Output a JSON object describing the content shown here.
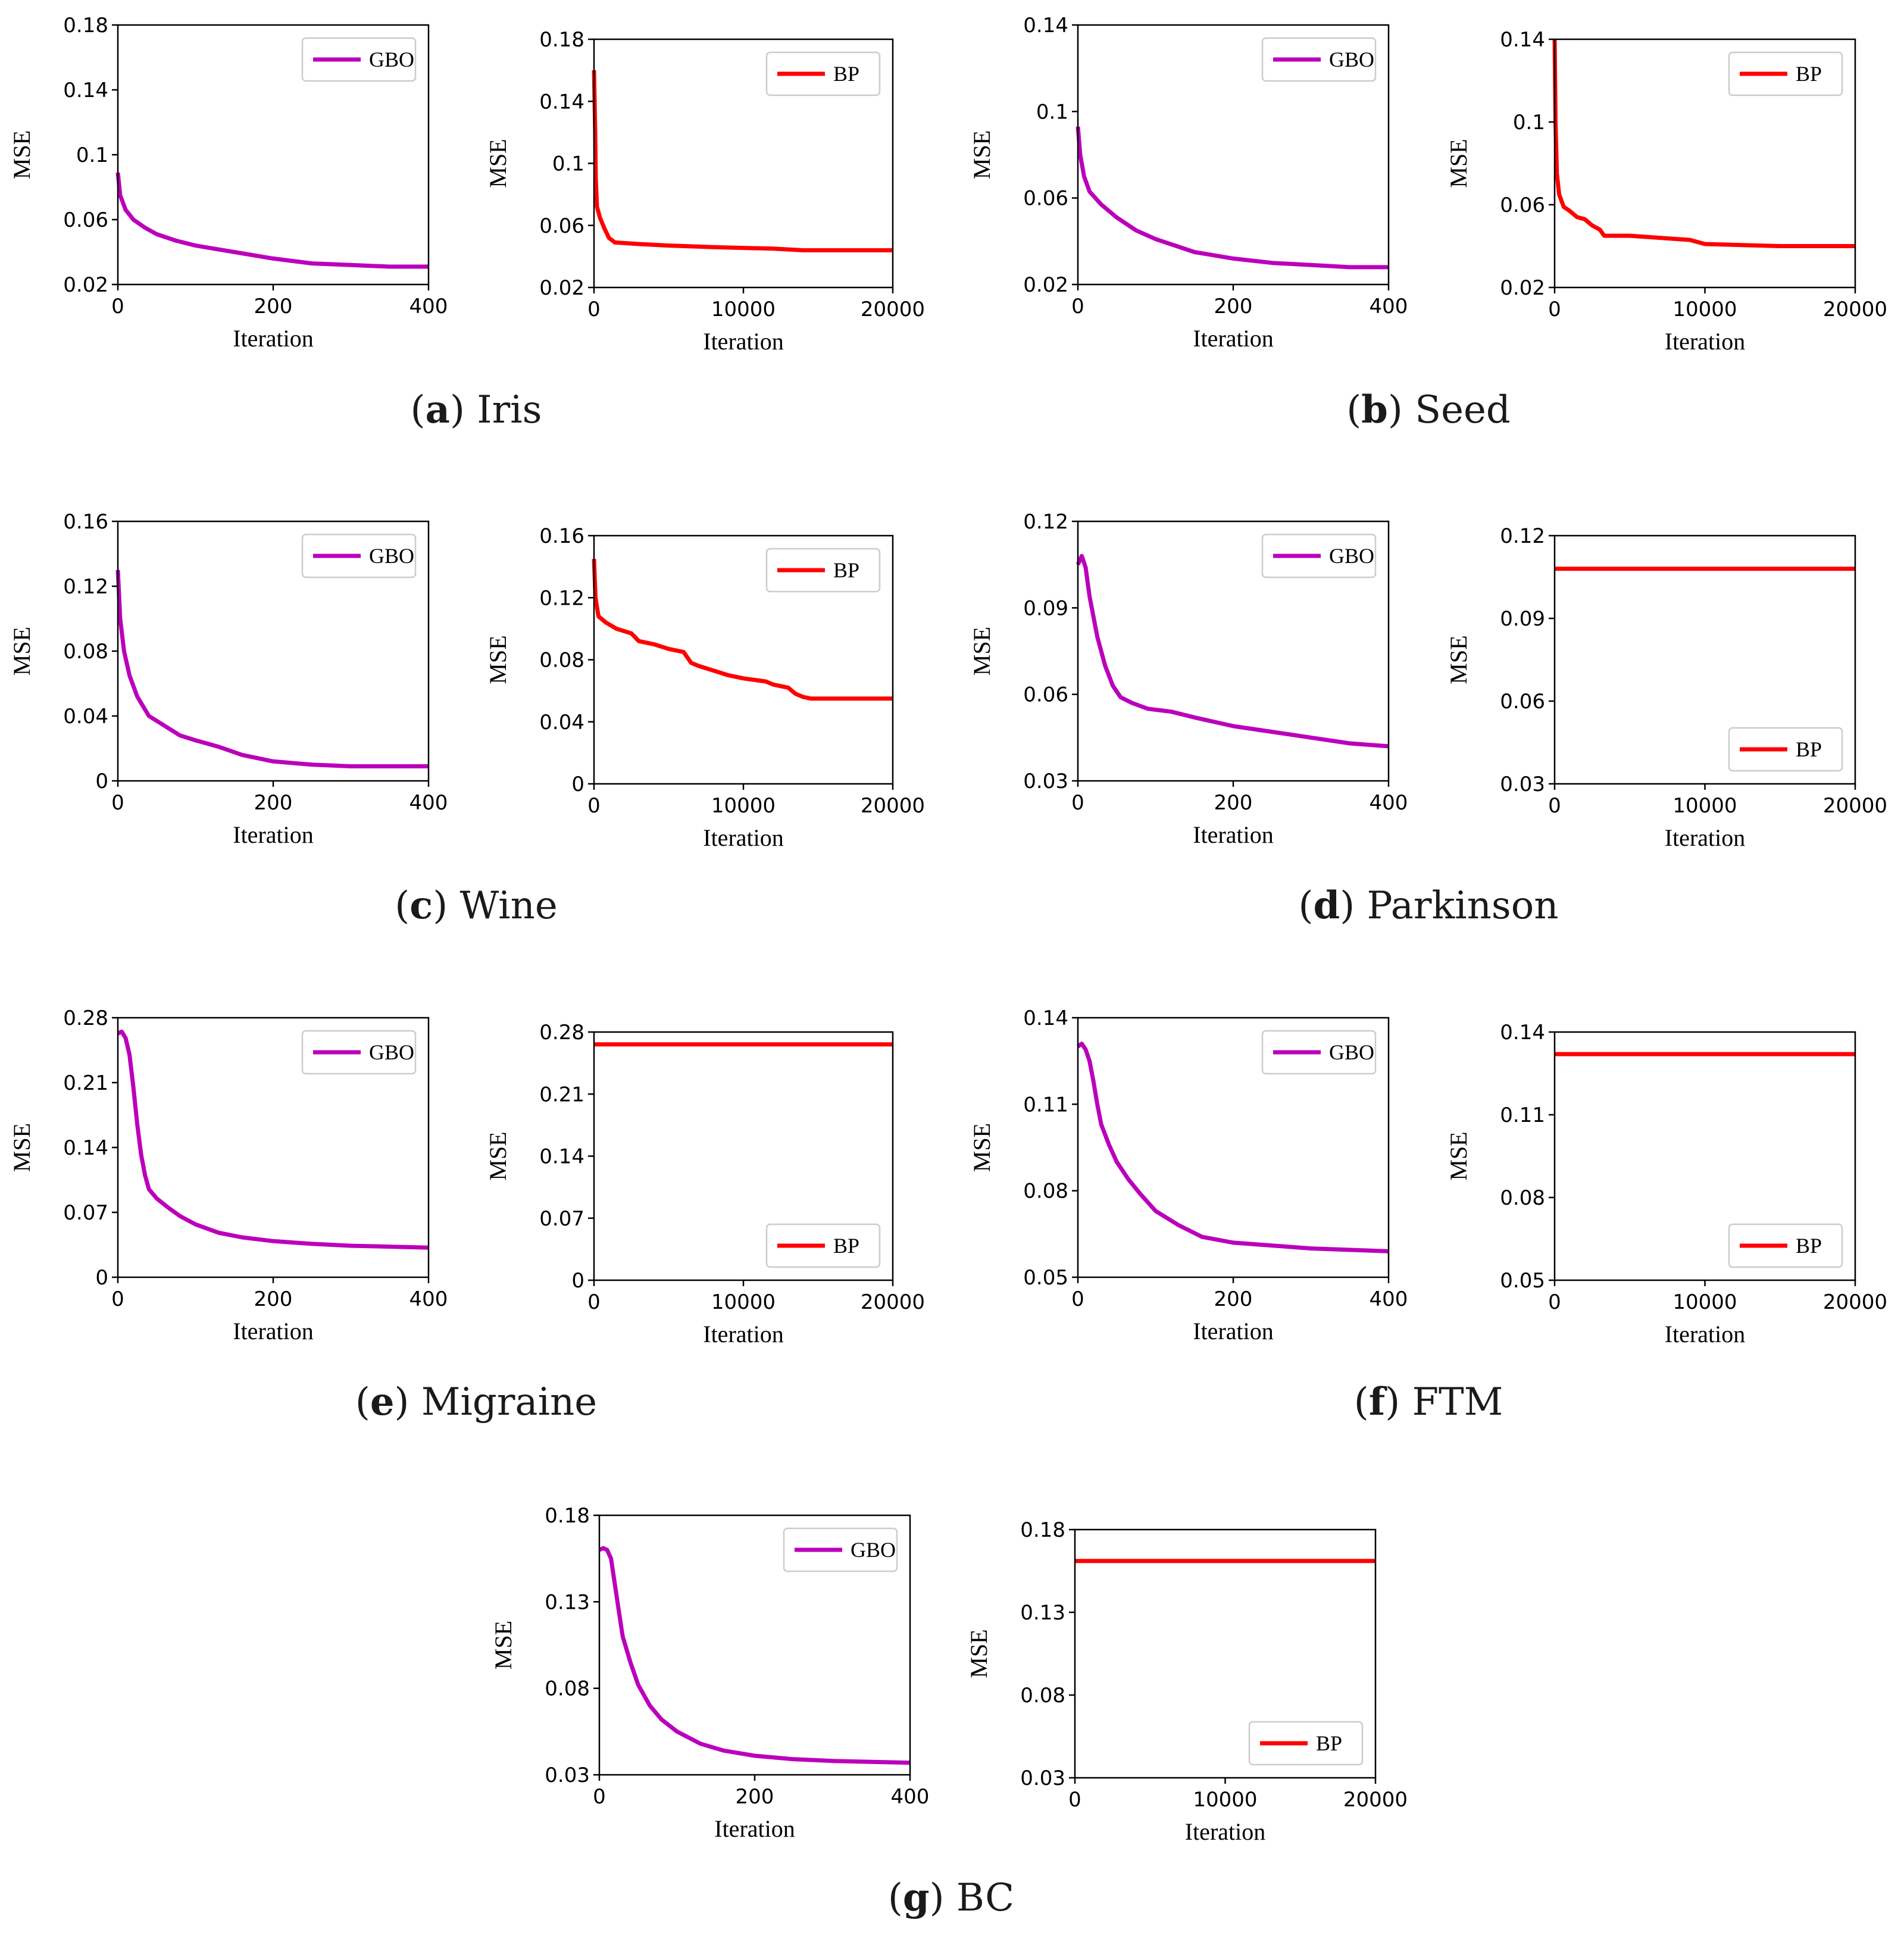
{
  "colors": {
    "gbo": "#bb00bb",
    "bp": "#ff0000",
    "axis": "#000000",
    "legend_border": "#cccccc"
  },
  "chart_data": [
    {
      "id": "a",
      "caption_letter": "a",
      "caption_text": "Iris",
      "panels": [
        {
          "type": "line",
          "series_name": "GBO",
          "color_key": "gbo",
          "xlabel": "Iteration",
          "ylabel": "MSE",
          "xlim": [
            0,
            400
          ],
          "ylim": [
            0.02,
            0.18
          ],
          "xticks": [
            0,
            200,
            400
          ],
          "xtick_labels": [
            "0",
            "200",
            "400"
          ],
          "yticks": [
            0.02,
            0.06,
            0.1,
            0.14,
            0.18
          ],
          "ytick_labels": [
            "0.02",
            "0.06",
            "0.1",
            "0.14",
            "0.18"
          ],
          "legend_loc": "upper-right",
          "x": [
            0,
            3,
            10,
            20,
            35,
            50,
            75,
            100,
            150,
            200,
            250,
            300,
            350,
            400
          ],
          "y": [
            0.089,
            0.075,
            0.066,
            0.06,
            0.055,
            0.051,
            0.047,
            0.044,
            0.04,
            0.036,
            0.033,
            0.032,
            0.031,
            0.031
          ]
        },
        {
          "type": "line",
          "series_name": "BP",
          "color_key": "bp",
          "xlabel": "Iteration",
          "ylabel": "MSE",
          "xlim": [
            0,
            20000
          ],
          "ylim": [
            0.02,
            0.18
          ],
          "xticks": [
            0,
            10000,
            20000
          ],
          "xtick_labels": [
            "0",
            "10000",
            "20000"
          ],
          "yticks": [
            0.02,
            0.06,
            0.1,
            0.14,
            0.18
          ],
          "ytick_labels": [
            "0.02",
            "0.06",
            "0.1",
            "0.14",
            "0.18"
          ],
          "legend_loc": "upper-right",
          "x": [
            0,
            80,
            120,
            200,
            400,
            700,
            1000,
            1400,
            3000,
            5000,
            8000,
            12000,
            14000,
            17000,
            20000
          ],
          "y": [
            0.16,
            0.12,
            0.09,
            0.072,
            0.065,
            0.058,
            0.052,
            0.049,
            0.048,
            0.047,
            0.046,
            0.045,
            0.044,
            0.044,
            0.044
          ]
        }
      ]
    },
    {
      "id": "b",
      "caption_letter": "b",
      "caption_text": "Seed",
      "panels": [
        {
          "type": "line",
          "series_name": "GBO",
          "color_key": "gbo",
          "xlabel": "Iteration",
          "ylabel": "MSE",
          "xlim": [
            0,
            400
          ],
          "ylim": [
            0.02,
            0.14
          ],
          "xticks": [
            0,
            200,
            400
          ],
          "xtick_labels": [
            "0",
            "200",
            "400"
          ],
          "yticks": [
            0.02,
            0.06,
            0.1,
            0.14
          ],
          "ytick_labels": [
            "0.02",
            "0.06",
            "0.1",
            "0.14"
          ],
          "legend_loc": "upper-right",
          "x": [
            0,
            3,
            8,
            15,
            30,
            50,
            75,
            100,
            150,
            200,
            250,
            300,
            350,
            400
          ],
          "y": [
            0.093,
            0.08,
            0.07,
            0.063,
            0.057,
            0.051,
            0.045,
            0.041,
            0.035,
            0.032,
            0.03,
            0.029,
            0.028,
            0.028
          ]
        },
        {
          "type": "line",
          "series_name": "BP",
          "color_key": "bp",
          "xlabel": "Iteration",
          "ylabel": "MSE",
          "xlim": [
            0,
            20000
          ],
          "ylim": [
            0.02,
            0.14
          ],
          "xticks": [
            0,
            10000,
            20000
          ],
          "xtick_labels": [
            "0",
            "10000",
            "20000"
          ],
          "yticks": [
            0.02,
            0.06,
            0.1,
            0.14
          ],
          "ytick_labels": [
            "0.02",
            "0.06",
            "0.1",
            "0.14"
          ],
          "legend_loc": "upper-right",
          "x": [
            0,
            60,
            150,
            300,
            600,
            1000,
            1500,
            2000,
            2500,
            3000,
            3300,
            5000,
            7000,
            9000,
            10000,
            15000,
            20000
          ],
          "y": [
            0.14,
            0.1,
            0.075,
            0.065,
            0.059,
            0.057,
            0.054,
            0.053,
            0.05,
            0.048,
            0.045,
            0.045,
            0.044,
            0.043,
            0.041,
            0.04,
            0.04
          ]
        }
      ]
    },
    {
      "id": "c",
      "caption_letter": "c",
      "caption_text": "Wine",
      "panels": [
        {
          "type": "line",
          "series_name": "GBO",
          "color_key": "gbo",
          "xlabel": "Iteration",
          "ylabel": "MSE",
          "xlim": [
            0,
            400
          ],
          "ylim": [
            0,
            0.16
          ],
          "xticks": [
            0,
            200,
            400
          ],
          "xtick_labels": [
            "0",
            "200",
            "400"
          ],
          "yticks": [
            0,
            0.04,
            0.08,
            0.12,
            0.16
          ],
          "ytick_labels": [
            "0",
            "0.04",
            "0.08",
            "0.12",
            "0.16"
          ],
          "legend_loc": "upper-right",
          "x": [
            0,
            3,
            8,
            15,
            25,
            40,
            60,
            80,
            100,
            130,
            160,
            200,
            250,
            300,
            350,
            400
          ],
          "y": [
            0.13,
            0.1,
            0.08,
            0.065,
            0.052,
            0.04,
            0.034,
            0.028,
            0.025,
            0.021,
            0.016,
            0.012,
            0.01,
            0.009,
            0.009,
            0.009
          ]
        },
        {
          "type": "line",
          "series_name": "BP",
          "color_key": "bp",
          "xlabel": "Iteration",
          "ylabel": "MSE",
          "xlim": [
            0,
            20000
          ],
          "ylim": [
            0,
            0.16
          ],
          "xticks": [
            0,
            10000,
            20000
          ],
          "xtick_labels": [
            "0",
            "10000",
            "20000"
          ],
          "yticks": [
            0,
            0.04,
            0.08,
            0.12,
            0.16
          ],
          "ytick_labels": [
            "0",
            "0.04",
            "0.08",
            "0.12",
            "0.16"
          ],
          "legend_loc": "upper-right",
          "x": [
            0,
            100,
            300,
            800,
            1500,
            2500,
            3000,
            4000,
            5000,
            6000,
            6500,
            7000,
            8000,
            9000,
            10000,
            11500,
            12000,
            13000,
            13500,
            14000,
            14500,
            20000
          ],
          "y": [
            0.145,
            0.12,
            0.108,
            0.104,
            0.1,
            0.097,
            0.092,
            0.09,
            0.087,
            0.085,
            0.078,
            0.076,
            0.073,
            0.07,
            0.068,
            0.066,
            0.064,
            0.062,
            0.058,
            0.056,
            0.055,
            0.055
          ]
        }
      ]
    },
    {
      "id": "d",
      "caption_letter": "d",
      "caption_text": "Parkinson",
      "panels": [
        {
          "type": "line",
          "series_name": "GBO",
          "color_key": "gbo",
          "xlabel": "Iteration",
          "ylabel": "MSE",
          "xlim": [
            0,
            400
          ],
          "ylim": [
            0.03,
            0.12
          ],
          "xticks": [
            0,
            200,
            400
          ],
          "xtick_labels": [
            "0",
            "200",
            "400"
          ],
          "yticks": [
            0.03,
            0.06,
            0.09,
            0.12
          ],
          "ytick_labels": [
            "0.03",
            "0.06",
            "0.09",
            "0.12"
          ],
          "legend_loc": "upper-right",
          "x": [
            0,
            5,
            10,
            15,
            25,
            35,
            45,
            55,
            70,
            90,
            120,
            150,
            200,
            250,
            300,
            350,
            400
          ],
          "y": [
            0.105,
            0.108,
            0.104,
            0.094,
            0.08,
            0.07,
            0.063,
            0.059,
            0.057,
            0.055,
            0.054,
            0.052,
            0.049,
            0.047,
            0.045,
            0.043,
            0.042
          ]
        },
        {
          "type": "line",
          "series_name": "BP",
          "color_key": "bp",
          "xlabel": "Iteration",
          "ylabel": "MSE",
          "xlim": [
            0,
            20000
          ],
          "ylim": [
            0.03,
            0.12
          ],
          "xticks": [
            0,
            10000,
            20000
          ],
          "xtick_labels": [
            "0",
            "10000",
            "20000"
          ],
          "yticks": [
            0.03,
            0.06,
            0.09,
            0.12
          ],
          "ytick_labels": [
            "0.03",
            "0.06",
            "0.09",
            "0.12"
          ],
          "legend_loc": "lower-right",
          "x": [
            0,
            20000
          ],
          "y": [
            0.108,
            0.108
          ]
        }
      ]
    },
    {
      "id": "e",
      "caption_letter": "e",
      "caption_text": "Migraine",
      "panels": [
        {
          "type": "line",
          "series_name": "GBO",
          "color_key": "gbo",
          "xlabel": "Iteration",
          "ylabel": "MSE",
          "xlim": [
            0,
            400
          ],
          "ylim": [
            0,
            0.28
          ],
          "xticks": [
            0,
            200,
            400
          ],
          "xtick_labels": [
            "0",
            "200",
            "400"
          ],
          "yticks": [
            0,
            0.07,
            0.14,
            0.21,
            0.28
          ],
          "ytick_labels": [
            "0",
            "0.07",
            "0.14",
            "0.21",
            "0.28"
          ],
          "legend_loc": "upper-right",
          "x": [
            0,
            5,
            10,
            15,
            20,
            25,
            30,
            35,
            40,
            50,
            65,
            80,
            100,
            130,
            160,
            200,
            250,
            300,
            350,
            400
          ],
          "y": [
            0.263,
            0.265,
            0.258,
            0.24,
            0.205,
            0.165,
            0.132,
            0.11,
            0.095,
            0.085,
            0.075,
            0.066,
            0.057,
            0.048,
            0.043,
            0.039,
            0.036,
            0.034,
            0.033,
            0.032
          ]
        },
        {
          "type": "line",
          "series_name": "BP",
          "color_key": "bp",
          "xlabel": "Iteration",
          "ylabel": "MSE",
          "xlim": [
            0,
            20000
          ],
          "ylim": [
            0,
            0.28
          ],
          "xticks": [
            0,
            10000,
            20000
          ],
          "xtick_labels": [
            "0",
            "10000",
            "20000"
          ],
          "yticks": [
            0,
            0.07,
            0.14,
            0.21,
            0.28
          ],
          "ytick_labels": [
            "0",
            "0.07",
            "0.14",
            "0.21",
            "0.28"
          ],
          "legend_loc": "lower-right",
          "x": [
            0,
            20000
          ],
          "y": [
            0.266,
            0.266
          ]
        }
      ]
    },
    {
      "id": "f",
      "caption_letter": "f",
      "caption_text": "FTM",
      "panels": [
        {
          "type": "line",
          "series_name": "GBO",
          "color_key": "gbo",
          "xlabel": "Iteration",
          "ylabel": "MSE",
          "xlim": [
            0,
            400
          ],
          "ylim": [
            0.05,
            0.14
          ],
          "xticks": [
            0,
            200,
            400
          ],
          "xtick_labels": [
            "0",
            "200",
            "400"
          ],
          "yticks": [
            0.05,
            0.08,
            0.11,
            0.14
          ],
          "ytick_labels": [
            "0.05",
            "0.08",
            "0.11",
            "0.14"
          ],
          "legend_loc": "upper-right",
          "x": [
            0,
            5,
            10,
            15,
            20,
            25,
            30,
            40,
            50,
            65,
            80,
            100,
            130,
            160,
            200,
            250,
            300,
            350,
            400
          ],
          "y": [
            0.13,
            0.131,
            0.129,
            0.125,
            0.118,
            0.11,
            0.103,
            0.096,
            0.09,
            0.084,
            0.079,
            0.073,
            0.068,
            0.064,
            0.062,
            0.061,
            0.06,
            0.0595,
            0.059
          ]
        },
        {
          "type": "line",
          "series_name": "BP",
          "color_key": "bp",
          "xlabel": "Iteration",
          "ylabel": "MSE",
          "xlim": [
            0,
            20000
          ],
          "ylim": [
            0.05,
            0.14
          ],
          "xticks": [
            0,
            10000,
            20000
          ],
          "xtick_labels": [
            "0",
            "10000",
            "20000"
          ],
          "yticks": [
            0.05,
            0.08,
            0.11,
            0.14
          ],
          "ytick_labels": [
            "0.05",
            "0.08",
            "0.11",
            "0.14"
          ],
          "legend_loc": "lower-right",
          "x": [
            0,
            20000
          ],
          "y": [
            0.132,
            0.132
          ]
        }
      ]
    },
    {
      "id": "g",
      "caption_letter": "g",
      "caption_text": "BC",
      "panels": [
        {
          "type": "line",
          "series_name": "GBO",
          "color_key": "gbo",
          "xlabel": "Iteration",
          "ylabel": "MSE",
          "xlim": [
            0,
            400
          ],
          "ylim": [
            0.03,
            0.18
          ],
          "xticks": [
            0,
            200,
            400
          ],
          "xtick_labels": [
            "0",
            "200",
            "400"
          ],
          "yticks": [
            0.03,
            0.08,
            0.13,
            0.18
          ],
          "ytick_labels": [
            "0.03",
            "0.08",
            "0.13",
            "0.18"
          ],
          "legend_loc": "upper-right",
          "x": [
            0,
            5,
            10,
            15,
            20,
            25,
            30,
            40,
            50,
            65,
            80,
            100,
            130,
            160,
            200,
            250,
            300,
            350,
            400
          ],
          "y": [
            0.16,
            0.161,
            0.16,
            0.155,
            0.14,
            0.125,
            0.11,
            0.095,
            0.082,
            0.07,
            0.062,
            0.055,
            0.048,
            0.044,
            0.041,
            0.039,
            0.038,
            0.0375,
            0.037
          ]
        },
        {
          "type": "line",
          "series_name": "BP",
          "color_key": "bp",
          "xlabel": "Iteration",
          "ylabel": "MSE",
          "xlim": [
            0,
            20000
          ],
          "ylim": [
            0.03,
            0.18
          ],
          "xticks": [
            0,
            10000,
            20000
          ],
          "xtick_labels": [
            "0",
            "10000",
            "20000"
          ],
          "yticks": [
            0.03,
            0.08,
            0.13,
            0.18
          ],
          "ytick_labels": [
            "0.03",
            "0.08",
            "0.13",
            "0.18"
          ],
          "legend_loc": "lower-right",
          "x": [
            0,
            20000
          ],
          "y": [
            0.161,
            0.161
          ]
        }
      ]
    }
  ]
}
